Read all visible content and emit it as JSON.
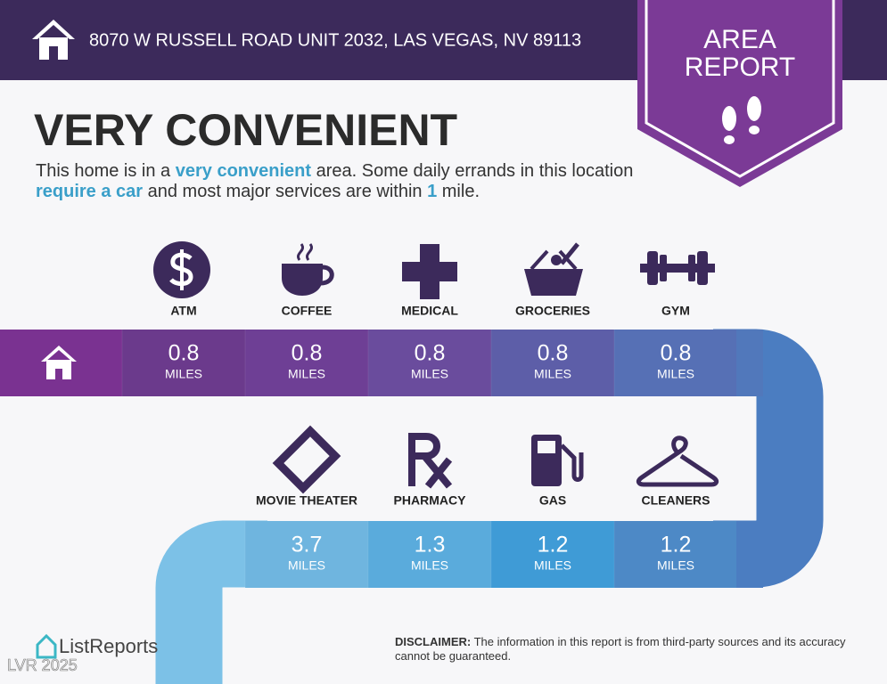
{
  "header": {
    "address": "8070 W RUSSELL ROAD UNIT 2032, LAS VEGAS, NV 89113"
  },
  "badge": {
    "line1": "AREA",
    "line2": "REPORT"
  },
  "title": "VERY CONVENIENT",
  "description": [
    "This home is in a ",
    "very convenient",
    " area. Some daily errands in this location ",
    "require a car",
    " and most major services are within ",
    "1",
    " mile."
  ],
  "amenities": [
    {
      "label": "ATM",
      "distance": 0.8,
      "unit": "MILES"
    },
    {
      "label": "COFFEE",
      "distance": 0.8,
      "unit": "MILES"
    },
    {
      "label": "MEDICAL",
      "distance": 0.8,
      "unit": "MILES"
    },
    {
      "label": "GROCERIES",
      "distance": 0.8,
      "unit": "MILES"
    },
    {
      "label": "GYM",
      "distance": 0.8,
      "unit": "MILES"
    },
    {
      "label": "MOVIE THEATER",
      "distance": 3.7,
      "unit": "MILES"
    },
    {
      "label": "PHARMACY",
      "distance": 1.3,
      "unit": "MILES"
    },
    {
      "label": "GAS",
      "distance": 1.2,
      "unit": "MILES"
    },
    {
      "label": "CLEANERS",
      "distance": 1.2,
      "unit": "MILES"
    }
  ],
  "footer": {
    "brand": "ListReports",
    "disclaimer_label": "DISCLAIMER:",
    "disclaimer": " The information in this report is from third-party sources and its accuracy cannot be guaranteed.",
    "watermark": "LVR 2025"
  }
}
